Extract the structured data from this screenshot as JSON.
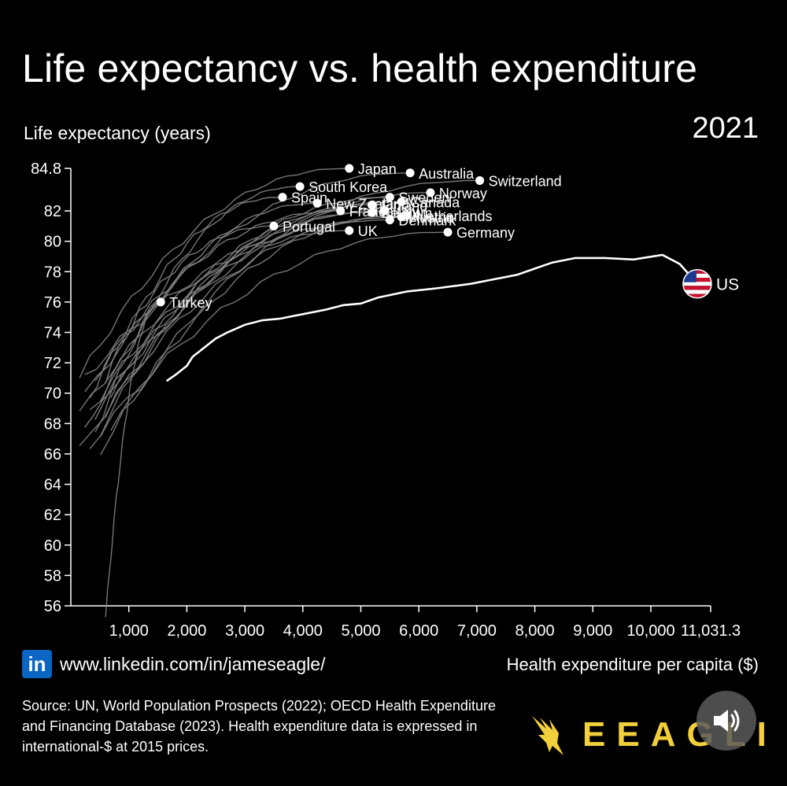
{
  "chart_data": {
    "type": "line",
    "title": "Life expectancy vs. health expenditure",
    "year_label": "2021",
    "ylabel": "Life expectancy (years)",
    "xlabel": "Health expenditure per capita ($)",
    "xlim": [
      0,
      11031.3
    ],
    "ylim": [
      56,
      84.8
    ],
    "x_ticks": [
      1000,
      2000,
      3000,
      4000,
      5000,
      6000,
      7000,
      8000,
      9000,
      10000,
      11031.3
    ],
    "x_tick_labels": [
      "1,000",
      "2,000",
      "3,000",
      "4,000",
      "5,000",
      "6,000",
      "7,000",
      "8,000",
      "9,000",
      "10,000",
      "11,031.3"
    ],
    "y_ticks": [
      56,
      58,
      60,
      62,
      64,
      66,
      68,
      70,
      72,
      74,
      76,
      78,
      80,
      82,
      84.8
    ],
    "y_tick_labels": [
      "56",
      "58",
      "60",
      "62",
      "64",
      "66",
      "68",
      "70",
      "72",
      "74",
      "76",
      "78",
      "80",
      "82",
      "84.8"
    ],
    "countries": [
      {
        "name": "Japan",
        "x": 4800,
        "y": 84.8
      },
      {
        "name": "Australia",
        "x": 5850,
        "y": 84.5
      },
      {
        "name": "Switzerland",
        "x": 7050,
        "y": 84.0
      },
      {
        "name": "South Korea",
        "x": 3950,
        "y": 83.6
      },
      {
        "name": "Norway",
        "x": 6200,
        "y": 83.2
      },
      {
        "name": "Spain",
        "x": 3650,
        "y": 82.9
      },
      {
        "name": "Sweden",
        "x": 5500,
        "y": 82.9
      },
      {
        "name": "Canada",
        "x": 5700,
        "y": 82.6
      },
      {
        "name": "New Zealand",
        "x": 4250,
        "y": 82.5
      },
      {
        "name": "Finland",
        "x": 5200,
        "y": 82.4
      },
      {
        "name": "France",
        "x": 4650,
        "y": 82.0
      },
      {
        "name": "Italy",
        "x": 5400,
        "y": 82.0
      },
      {
        "name": "Belgium",
        "x": 5200,
        "y": 81.9
      },
      {
        "name": "Netherlands",
        "x": 5800,
        "y": 81.7
      },
      {
        "name": "Austria",
        "x": 5700,
        "y": 81.6
      },
      {
        "name": "Denmark",
        "x": 5500,
        "y": 81.4
      },
      {
        "name": "Portugal",
        "x": 3500,
        "y": 81.0
      },
      {
        "name": "UK",
        "x": 4800,
        "y": 80.7
      },
      {
        "name": "Germany",
        "x": 6500,
        "y": 80.6
      },
      {
        "name": "Turkey",
        "x": 1550,
        "y": 76.0
      }
    ],
    "series_us": {
      "name": "US",
      "x": [
        1650,
        1800,
        2000,
        2100,
        2300,
        2500,
        2700,
        3000,
        3300,
        3600,
        4000,
        4400,
        4700,
        5000,
        5300,
        5800,
        6300,
        6900,
        7300,
        7700,
        8000,
        8300,
        8700,
        9200,
        9700,
        10200,
        10500,
        10800
      ],
      "y": [
        70.8,
        71.2,
        71.8,
        72.4,
        73.0,
        73.6,
        74.0,
        74.5,
        74.8,
        74.9,
        75.2,
        75.5,
        75.8,
        75.9,
        76.3,
        76.7,
        76.9,
        77.2,
        77.5,
        77.8,
        78.2,
        78.6,
        78.9,
        78.9,
        78.8,
        79.1,
        78.5,
        77.2
      ]
    }
  },
  "branding": {
    "linkedin_logo": "in",
    "linkedin_url": "www.linkedin.com/in/jameseagle/",
    "source_text": "Source: UN, World Population Prospects (2022); OECD Health Expenditure and Financing Database (2023). Health expenditure data is expressed in international-$ at 2015 prices.",
    "brand_name": "EEAGLI",
    "brand_color": "#f2d03b"
  },
  "colors": {
    "background": "#000000",
    "country_lines": "#8a8a8a",
    "us_line": "#ffffff"
  }
}
